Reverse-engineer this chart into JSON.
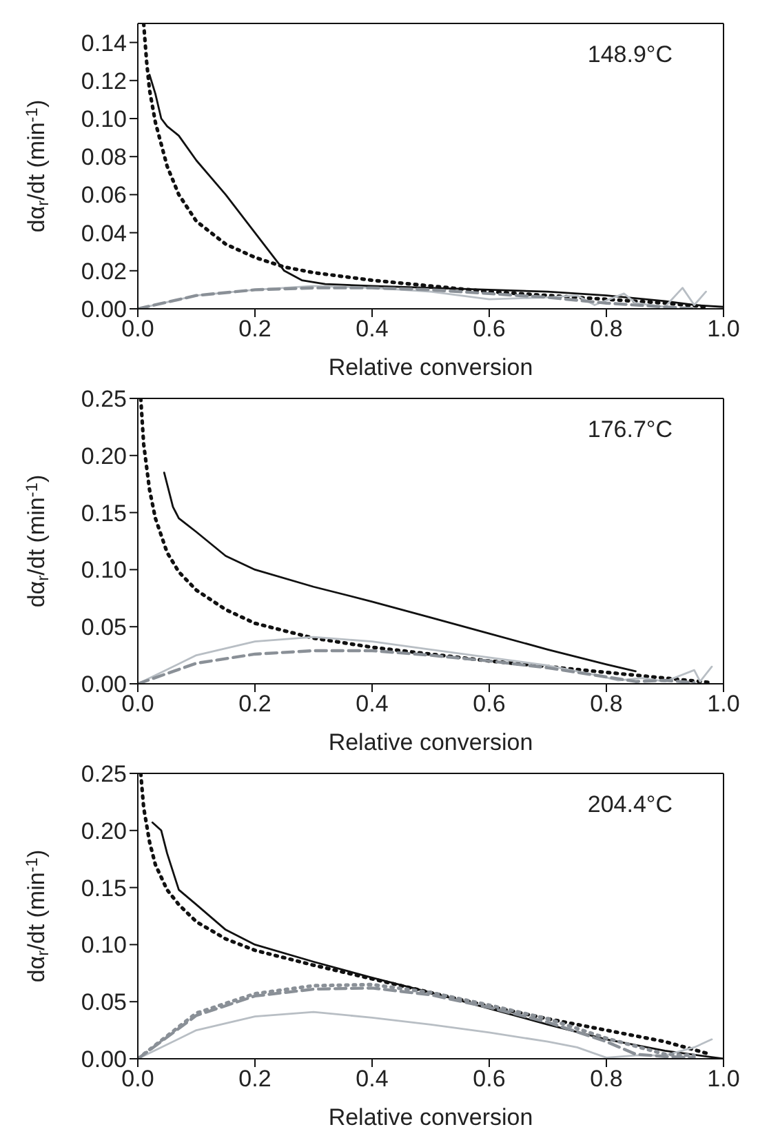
{
  "chart_data": [
    {
      "type": "line",
      "ylabel": "dα$_{r}$/dt (min$^{-1}$)",
      "xlabel": "Relative conversion",
      "annotations": [
        "148.9°C"
      ],
      "xlim": [
        0,
        1
      ],
      "ylim": [
        0,
        0.15
      ],
      "xticks": [
        {
          "value": 0,
          "label": "0.0"
        },
        {
          "value": 0.2,
          "label": "0.2"
        },
        {
          "value": 0.4,
          "label": "0.4"
        },
        {
          "value": 0.6,
          "label": "0.6"
        },
        {
          "value": 0.8,
          "label": "0.8"
        },
        {
          "value": 1,
          "label": "1.0"
        }
      ],
      "yticks": [
        {
          "value": 0,
          "label": "0.00"
        },
        {
          "value": 0.02,
          "label": "0.02"
        },
        {
          "value": 0.04,
          "label": "0.04"
        },
        {
          "value": 0.06,
          "label": "0.06"
        },
        {
          "value": 0.08,
          "label": "0.08"
        },
        {
          "value": 0.1,
          "label": "0.10"
        },
        {
          "value": 0.12,
          "label": "0.12"
        },
        {
          "value": 0.14,
          "label": "0.14"
        }
      ],
      "series": [
        {
          "color": "#111111",
          "line_style": "solid",
          "x": [
            0.02,
            0.03,
            0.04,
            0.05,
            0.07,
            0.1,
            0.15,
            0.2,
            0.25,
            0.28,
            0.32,
            0.4,
            0.5,
            0.6,
            0.7,
            0.8,
            0.9,
            0.95,
            1.0
          ],
          "values": [
            0.123,
            0.113,
            0.1,
            0.096,
            0.091,
            0.078,
            0.06,
            0.04,
            0.02,
            0.015,
            0.013,
            0.012,
            0.011,
            0.01,
            0.009,
            0.007,
            0.004,
            0.002,
            0.001
          ]
        },
        {
          "color": "#111111",
          "line_style": "dotted",
          "x": [
            0.01,
            0.015,
            0.02,
            0.03,
            0.05,
            0.07,
            0.1,
            0.15,
            0.2,
            0.25,
            0.3,
            0.4,
            0.5,
            0.6,
            0.7,
            0.8,
            0.9,
            0.97
          ],
          "values": [
            0.15,
            0.13,
            0.115,
            0.098,
            0.075,
            0.06,
            0.046,
            0.034,
            0.027,
            0.022,
            0.019,
            0.015,
            0.012,
            0.009,
            0.007,
            0.005,
            0.003,
            0.001
          ]
        },
        {
          "color": "#b8bec4",
          "line_style": "solid",
          "x": [
            0,
            0.1,
            0.2,
            0.3,
            0.4,
            0.5,
            0.6,
            0.7,
            0.75,
            0.78,
            0.83,
            0.85,
            0.9,
            0.93,
            0.95,
            0.97
          ],
          "values": [
            0,
            0.007,
            0.01,
            0.012,
            0.011,
            0.009,
            0.005,
            0.006,
            0.007,
            0.002,
            0.008,
            0.003,
            0.001,
            0.011,
            0.002,
            0.009
          ]
        },
        {
          "color": "#8a9097",
          "line_style": "dashed",
          "x": [
            0,
            0.1,
            0.2,
            0.3,
            0.4,
            0.5,
            0.6,
            0.7,
            0.8,
            0.9,
            0.95
          ],
          "values": [
            0,
            0.007,
            0.01,
            0.011,
            0.011,
            0.01,
            0.008,
            0.006,
            0.003,
            0.001,
            0
          ]
        }
      ]
    },
    {
      "type": "line",
      "ylabel": "dα$_{r}$/dt (min$^{-1}$)",
      "xlabel": "Relative conversion",
      "annotations": [
        "176.7°C"
      ],
      "xlim": [
        0,
        1
      ],
      "ylim": [
        0,
        0.25
      ],
      "xticks": [
        {
          "value": 0,
          "label": "0.0"
        },
        {
          "value": 0.2,
          "label": "0.2"
        },
        {
          "value": 0.4,
          "label": "0.4"
        },
        {
          "value": 0.6,
          "label": "0.6"
        },
        {
          "value": 0.8,
          "label": "0.8"
        },
        {
          "value": 1,
          "label": "1.0"
        }
      ],
      "yticks": [
        {
          "value": 0,
          "label": "0.00"
        },
        {
          "value": 0.05,
          "label": "0.05"
        },
        {
          "value": 0.1,
          "label": "0.10"
        },
        {
          "value": 0.15,
          "label": "0.15"
        },
        {
          "value": 0.2,
          "label": "0.20"
        },
        {
          "value": 0.25,
          "label": "0.25"
        }
      ],
      "series": [
        {
          "color": "#111111",
          "line_style": "solid",
          "x": [
            0.045,
            0.06,
            0.07,
            0.1,
            0.15,
            0.2,
            0.3,
            0.4,
            0.5,
            0.6,
            0.7,
            0.8,
            0.85
          ],
          "values": [
            0.185,
            0.155,
            0.145,
            0.133,
            0.112,
            0.1,
            0.085,
            0.072,
            0.058,
            0.044,
            0.03,
            0.017,
            0.011
          ]
        },
        {
          "color": "#111111",
          "line_style": "dotted",
          "x": [
            0.005,
            0.01,
            0.02,
            0.03,
            0.05,
            0.07,
            0.1,
            0.15,
            0.2,
            0.3,
            0.4,
            0.5,
            0.6,
            0.7,
            0.8,
            0.9,
            0.98
          ],
          "values": [
            0.25,
            0.21,
            0.17,
            0.145,
            0.115,
            0.098,
            0.082,
            0.065,
            0.053,
            0.04,
            0.032,
            0.026,
            0.02,
            0.015,
            0.01,
            0.005,
            0.001
          ]
        },
        {
          "color": "#b8bec4",
          "line_style": "solid",
          "x": [
            0,
            0.1,
            0.2,
            0.3,
            0.4,
            0.5,
            0.6,
            0.7,
            0.78,
            0.82,
            0.86,
            0.9,
            0.95,
            0.96,
            0.98
          ],
          "values": [
            0,
            0.025,
            0.037,
            0.041,
            0.037,
            0.03,
            0.023,
            0.016,
            0.008,
            0.003,
            0.005,
            0.002,
            0.012,
            0.002,
            0.015
          ]
        },
        {
          "color": "#8a9097",
          "line_style": "dashed",
          "x": [
            0,
            0.1,
            0.2,
            0.3,
            0.4,
            0.5,
            0.6,
            0.7,
            0.8,
            0.85,
            0.9,
            0.95
          ],
          "values": [
            0,
            0.018,
            0.026,
            0.029,
            0.029,
            0.025,
            0.02,
            0.014,
            0.006,
            0.002,
            0.003,
            0.001
          ]
        }
      ]
    },
    {
      "type": "line",
      "ylabel": "dα$_{r}$/dt (min$^{-1}$)",
      "xlabel": "Relative conversion",
      "annotations": [
        "204.4°C"
      ],
      "xlim": [
        0,
        1
      ],
      "ylim": [
        0,
        0.25
      ],
      "xticks": [
        {
          "value": 0,
          "label": "0.0"
        },
        {
          "value": 0.2,
          "label": "0.2"
        },
        {
          "value": 0.4,
          "label": "0.4"
        },
        {
          "value": 0.6,
          "label": "0.6"
        },
        {
          "value": 0.8,
          "label": "0.8"
        },
        {
          "value": 1,
          "label": "1.0"
        }
      ],
      "yticks": [
        {
          "value": 0,
          "label": "0.00"
        },
        {
          "value": 0.05,
          "label": "0.05"
        },
        {
          "value": 0.1,
          "label": "0.10"
        },
        {
          "value": 0.15,
          "label": "0.15"
        },
        {
          "value": 0.2,
          "label": "0.20"
        },
        {
          "value": 0.25,
          "label": "0.25"
        }
      ],
      "series": [
        {
          "color": "#111111",
          "line_style": "solid",
          "x": [
            0.025,
            0.04,
            0.05,
            0.07,
            0.1,
            0.15,
            0.2,
            0.3,
            0.4,
            0.5,
            0.6,
            0.7,
            0.8,
            0.9,
            1.0
          ],
          "values": [
            0.207,
            0.2,
            0.18,
            0.148,
            0.135,
            0.113,
            0.1,
            0.085,
            0.071,
            0.058,
            0.044,
            0.03,
            0.017,
            0.007,
            0
          ]
        },
        {
          "color": "#111111",
          "line_style": "dotted",
          "x": [
            0.005,
            0.01,
            0.02,
            0.03,
            0.05,
            0.07,
            0.1,
            0.15,
            0.2,
            0.3,
            0.4,
            0.5,
            0.6,
            0.7,
            0.8,
            0.9,
            0.97
          ],
          "values": [
            0.25,
            0.22,
            0.19,
            0.17,
            0.148,
            0.135,
            0.12,
            0.105,
            0.095,
            0.082,
            0.07,
            0.058,
            0.046,
            0.035,
            0.025,
            0.015,
            0.005
          ]
        },
        {
          "color": "#b8bec4",
          "line_style": "solid",
          "x": [
            0,
            0.1,
            0.2,
            0.3,
            0.4,
            0.5,
            0.6,
            0.7,
            0.75,
            0.8,
            0.85,
            0.9,
            0.95,
            0.98
          ],
          "values": [
            0,
            0.025,
            0.037,
            0.041,
            0.036,
            0.03,
            0.023,
            0.015,
            0.01,
            0.001,
            0.003,
            0.003,
            0.01,
            0.017
          ]
        },
        {
          "color": "#8a9097",
          "line_style": "dashed",
          "x": [
            0,
            0.1,
            0.2,
            0.3,
            0.4,
            0.5,
            0.6,
            0.7,
            0.8,
            0.85,
            0.9,
            0.95
          ],
          "values": [
            0,
            0.038,
            0.055,
            0.061,
            0.062,
            0.056,
            0.045,
            0.032,
            0.015,
            0.004,
            0.002,
            0.001
          ]
        },
        {
          "color": "#8a9097",
          "line_style": "dotted",
          "x": [
            0,
            0.1,
            0.2,
            0.3,
            0.4,
            0.5,
            0.6,
            0.7,
            0.8,
            0.9,
            0.95
          ],
          "values": [
            0,
            0.04,
            0.057,
            0.064,
            0.065,
            0.058,
            0.047,
            0.035,
            0.018,
            0.004,
            0.003
          ]
        }
      ]
    }
  ]
}
